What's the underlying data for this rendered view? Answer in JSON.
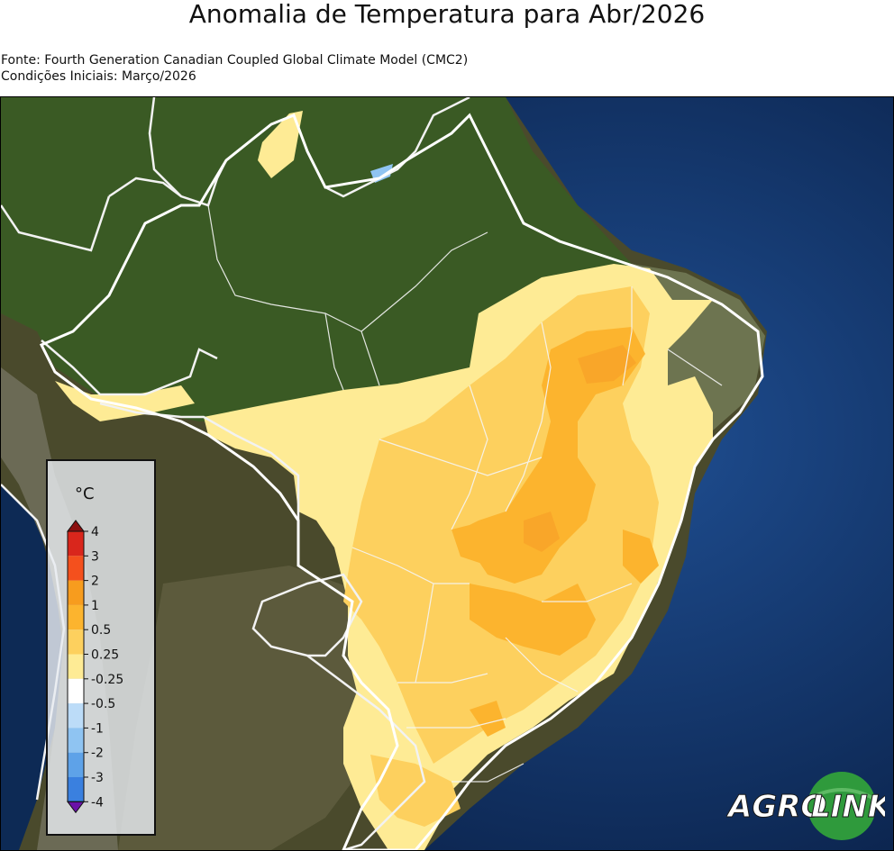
{
  "title": "Anomalia de Temperatura para Abr/2026",
  "source": "Fonte: Fourth Generation Canadian Coupled Global Climate Model (CMC2)",
  "initial_conditions": "Condições Iniciais: Março/2026",
  "legend": {
    "unit": "°C",
    "levels": [
      {
        "label": "4",
        "color": "#d9261c"
      },
      {
        "label": "3",
        "color": "#f4501d"
      },
      {
        "label": "2",
        "color": "#f79c1e"
      },
      {
        "label": "1",
        "color": "#fcb42e"
      },
      {
        "label": "0.5",
        "color": "#fdd05e"
      },
      {
        "label": "0.25",
        "color": "#feeb95"
      },
      {
        "label": "-0.25",
        "color": "#ffffff"
      },
      {
        "label": "-0.5",
        "color": "#bcdcf8"
      },
      {
        "label": "-1",
        "color": "#8fc4f2"
      },
      {
        "label": "-2",
        "color": "#5ea2e8"
      },
      {
        "label": "-3",
        "color": "#3a80df"
      },
      {
        "label": "-4",
        "color": "#2b5ccf"
      }
    ],
    "over_color": "#8b0f0f",
    "under_color": "#6a12a8"
  },
  "logo": {
    "text_left": "AGRO",
    "text_right": "LINK",
    "brand_green": "#2f9a3c"
  }
}
